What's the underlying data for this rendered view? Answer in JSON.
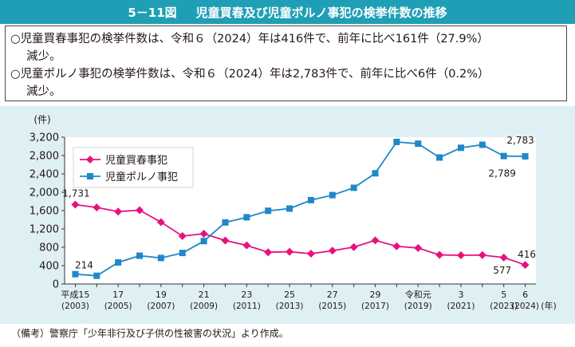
{
  "header": {
    "number": "5－11図",
    "title": "児童買春及び児童ポルノ事犯の検挙件数の推移"
  },
  "summary": {
    "line1": "○児童買春事犯の検挙件数は、令和６（2024）年は416件で、前年に比べ161件（27.9%）",
    "line1b": "減少。",
    "line2": "○児童ポルノ事犯の検挙件数は、令和６（2024）年は2,783件で、前年に比べ6件（0.2%）",
    "line2b": "減少。"
  },
  "note": "（備考）警察庁「少年非行及び子供の性被害の状況」より作成。",
  "colors": {
    "header_bg": "#1f9fb6",
    "chart_bg": "#dff0f5",
    "series1": "#e6127e",
    "series2": "#1e88c8"
  },
  "chart_data": {
    "type": "line",
    "ylabel": "(件)",
    "xlabel_suffix": "(年)",
    "ylim": [
      0,
      3200
    ],
    "yticks": [
      "0",
      "400",
      "800",
      "1,200",
      "1,600",
      "2,000",
      "2,400",
      "2,800",
      "3,200"
    ],
    "grid": false,
    "legend_position": "top-left",
    "x_years": [
      2003,
      2004,
      2005,
      2006,
      2007,
      2008,
      2009,
      2010,
      2011,
      2012,
      2013,
      2014,
      2015,
      2016,
      2017,
      2018,
      2019,
      2020,
      2021,
      2022,
      2023,
      2024
    ],
    "x_tick_labels": [
      {
        "line1": "平成15",
        "line2": "(2003)"
      },
      {
        "line1": "17",
        "line2": "(2005)"
      },
      {
        "line1": "19",
        "line2": "(2007)"
      },
      {
        "line1": "21",
        "line2": "(2009)"
      },
      {
        "line1": "23",
        "line2": "(2011)"
      },
      {
        "line1": "25",
        "line2": "(2013)"
      },
      {
        "line1": "27",
        "line2": "(2015)"
      },
      {
        "line1": "29",
        "line2": "(2017)"
      },
      {
        "line1": "令和元",
        "line2": "(2019)"
      },
      {
        "line1": "3",
        "line2": "(2021)"
      },
      {
        "line1": "5",
        "line2": "(2023)"
      },
      {
        "line1": "6",
        "line2": "(2024)"
      }
    ],
    "series": [
      {
        "name": "児童買春事犯",
        "marker": "diamond",
        "values": [
          1731,
          1668,
          1579,
          1609,
          1347,
          1046,
          1095,
          948,
          842,
          692,
          703,
          660,
          726,
          805,
          951,
          821,
          784,
          634,
          626,
          630,
          577,
          416
        ]
      },
      {
        "name": "児童ポルノ事犯",
        "marker": "square",
        "values": [
          214,
          179,
          470,
          616,
          567,
          676,
          935,
          1342,
          1455,
          1596,
          1644,
          1828,
          1938,
          2097,
          2413,
          3097,
          3059,
          2757,
          2969,
          3035,
          2789,
          2783
        ]
      }
    ],
    "data_labels": [
      {
        "text": "1,731"
      },
      {
        "text": "214"
      },
      {
        "text": "577"
      },
      {
        "text": "416"
      },
      {
        "text": "2,783"
      },
      {
        "text": "2,789"
      }
    ]
  }
}
